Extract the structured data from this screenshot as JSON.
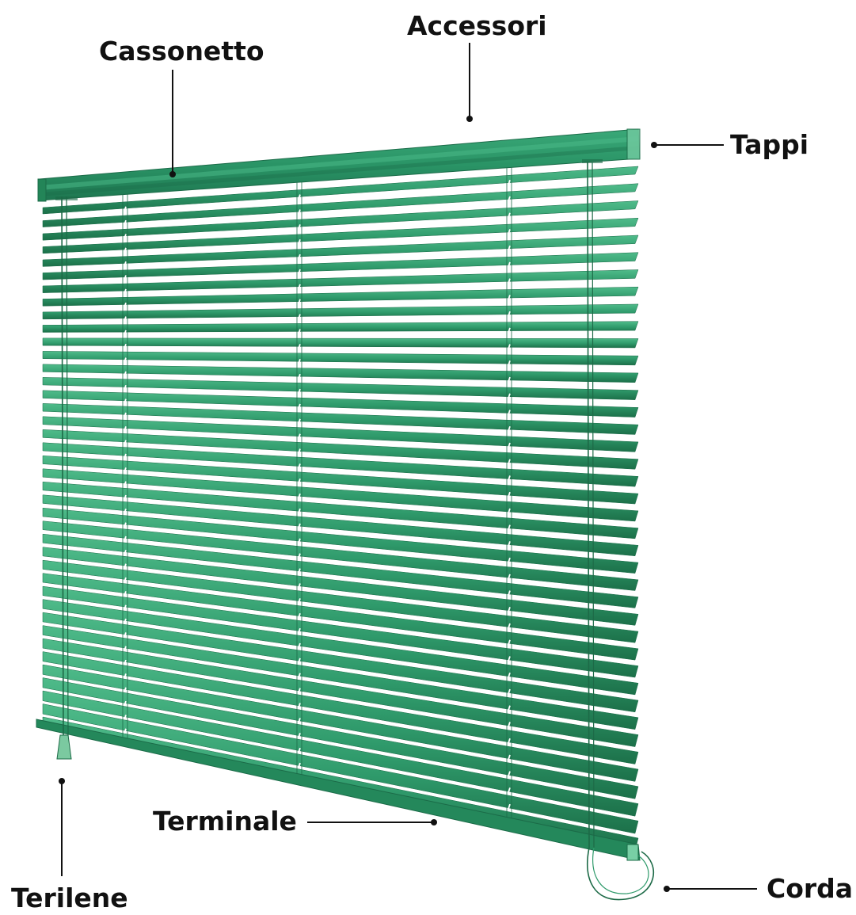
{
  "labels": {
    "accessori": "Accessori",
    "cassonetto": "Cassonetto",
    "tappi": "Tappi",
    "terminale": "Terminale",
    "terilene": "Terilene",
    "corda": "Corda"
  },
  "colors": {
    "slat": "#2f9a6b",
    "slat_dark": "#1f7a52",
    "slat_light": "#46b283",
    "headrail": "#2a9466",
    "cord": "#1d6a47",
    "leader": "#111111",
    "background": "#ffffff"
  },
  "blind": {
    "slat_count": 40
  }
}
